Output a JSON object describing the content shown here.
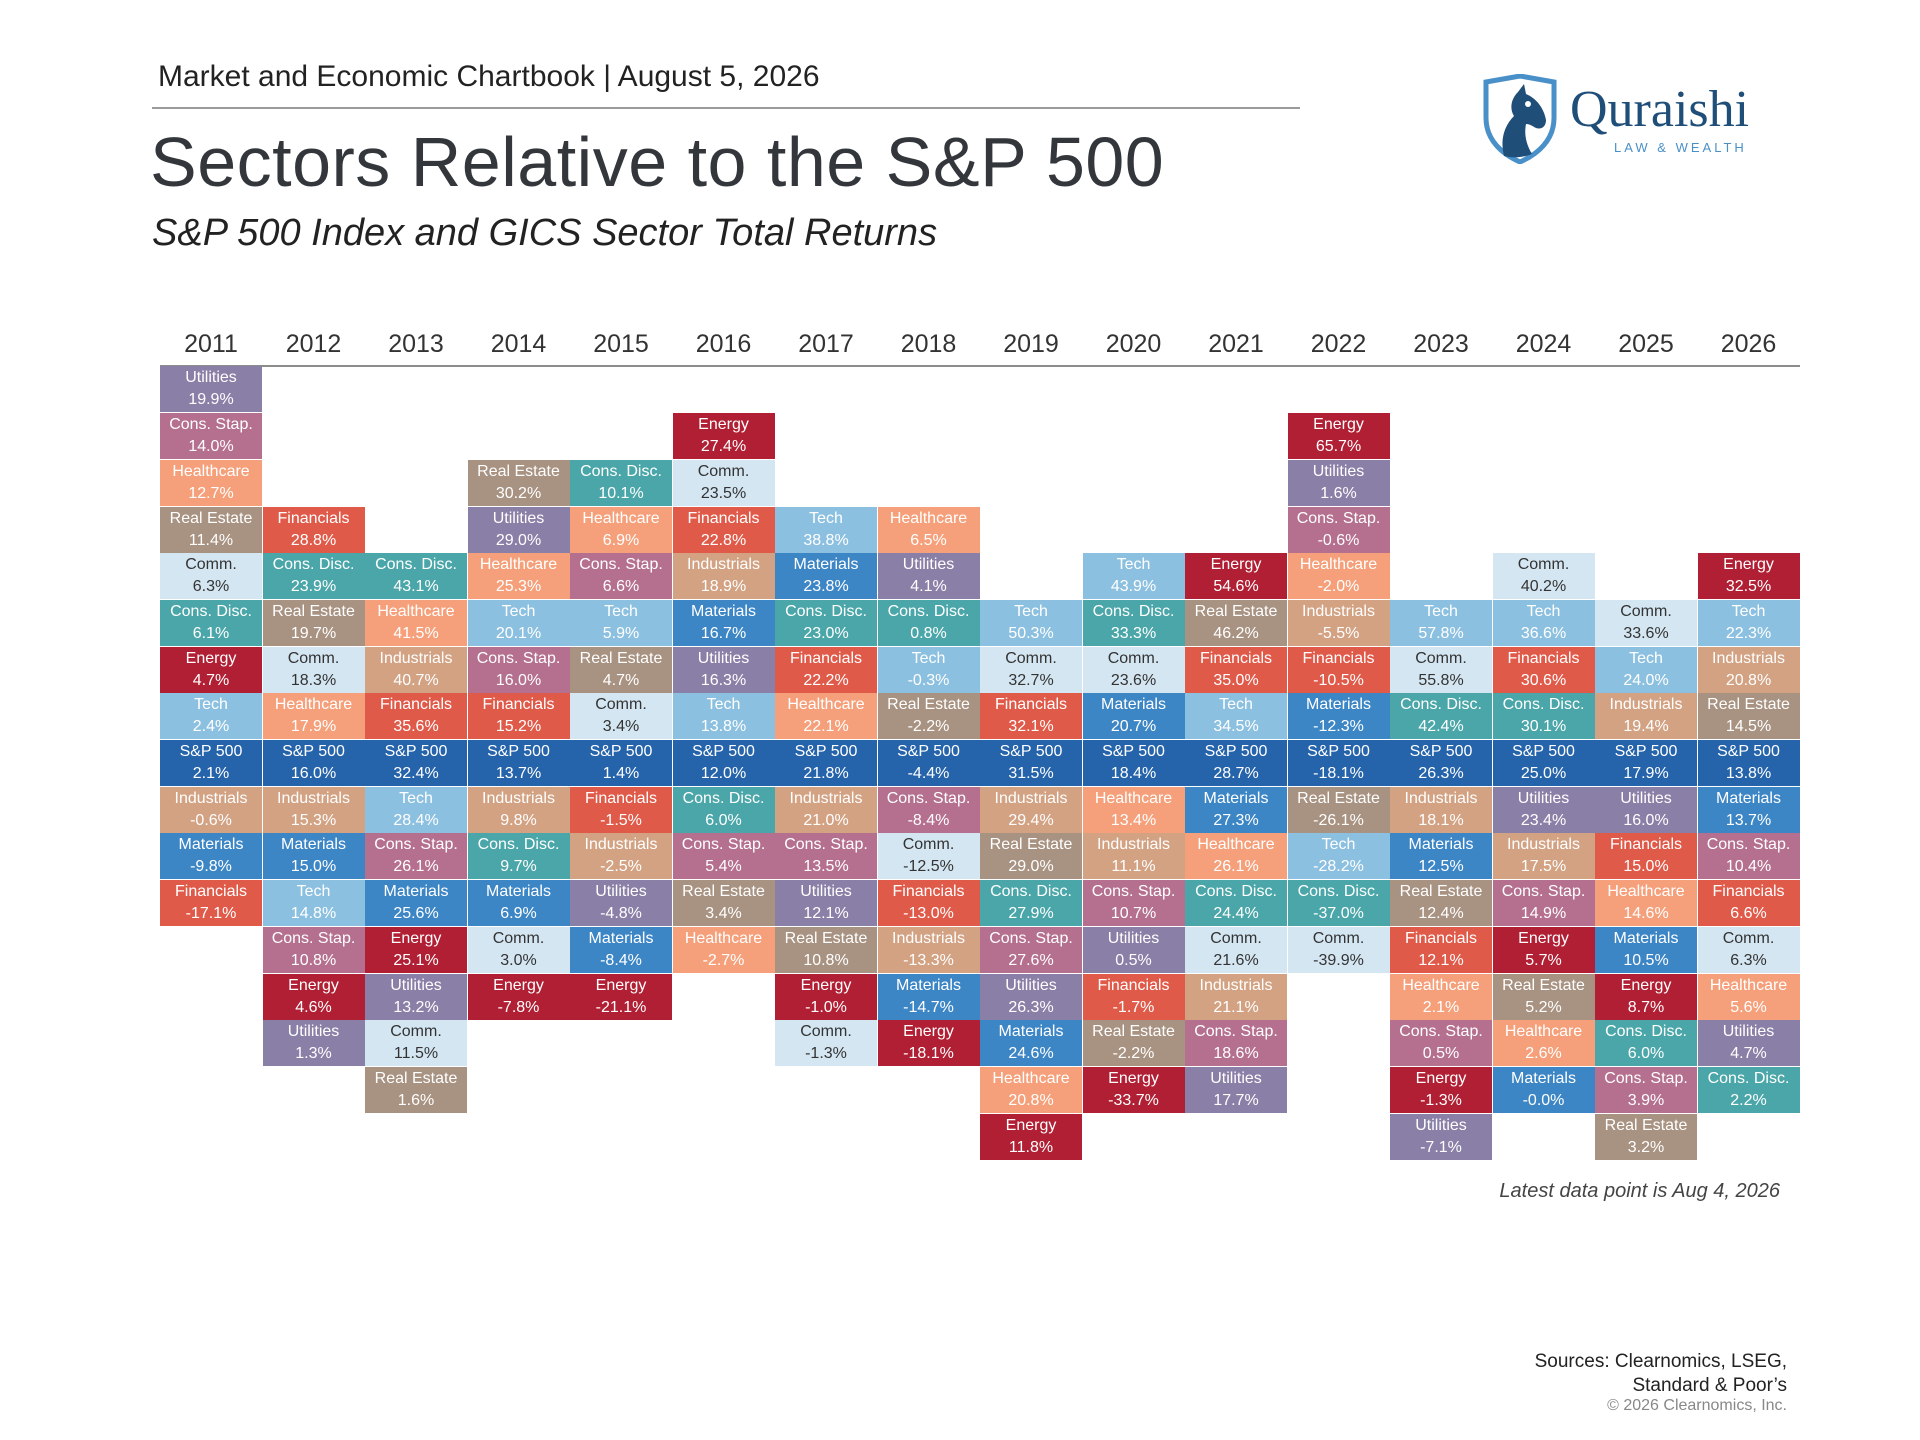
{
  "header": {
    "chartbook": "Market and Economic Chartbook | August 5, 2026",
    "title": "Sectors Relative to the S&P 500",
    "subtitle": "S&P 500 Index and GICS Sector Total Returns"
  },
  "logo": {
    "name": "Quraishi",
    "tagline": "LAW & WEALTH",
    "icon": "horse-head-shield-icon"
  },
  "footer": {
    "note": "Latest data point is Aug 4, 2026",
    "sources_line1": "Sources: Clearnomics, LSEG,",
    "sources_line2": "Standard & Poor’s",
    "copyright": "© 2026 Clearnomics, Inc."
  },
  "colors": {
    "Utilities": "#8a7fa6",
    "Cons. Stap.": "#b5708f",
    "Healthcare": "#f5a07a",
    "Real Estate": "#a89281",
    "Comm.": "#d4e6f2",
    "Cons. Disc.": "#4aa6a8",
    "Energy": "#b01f33",
    "Tech": "#8cc0e0",
    "S&P 500": "#2563aa",
    "Industrials": "#d2a283",
    "Materials": "#3d86c6",
    "Financials": "#e05a49"
  },
  "chart_data": {
    "type": "table",
    "sp500_row_index": 8,
    "years": [
      {
        "year": "2011",
        "start": 0,
        "cells": [
          [
            "Utilities",
            "19.9%"
          ],
          [
            "Cons. Stap.",
            "14.0%"
          ],
          [
            "Healthcare",
            "12.7%"
          ],
          [
            "Real Estate",
            "11.4%"
          ],
          [
            "Comm.",
            "6.3%"
          ],
          [
            "Cons. Disc.",
            "6.1%"
          ],
          [
            "Energy",
            "4.7%"
          ],
          [
            "Tech",
            "2.4%"
          ],
          [
            "S&P 500",
            "2.1%"
          ],
          [
            "Industrials",
            "-0.6%"
          ],
          [
            "Materials",
            "-9.8%"
          ],
          [
            "Financials",
            "-17.1%"
          ]
        ]
      },
      {
        "year": "2012",
        "start": 3,
        "cells": [
          [
            "Financials",
            "28.8%"
          ],
          [
            "Cons. Disc.",
            "23.9%"
          ],
          [
            "Real Estate",
            "19.7%"
          ],
          [
            "Comm.",
            "18.3%"
          ],
          [
            "Healthcare",
            "17.9%"
          ],
          [
            "S&P 500",
            "16.0%"
          ],
          [
            "Industrials",
            "15.3%"
          ],
          [
            "Materials",
            "15.0%"
          ],
          [
            "Tech",
            "14.8%"
          ],
          [
            "Cons. Stap.",
            "10.8%"
          ],
          [
            "Energy",
            "4.6%"
          ],
          [
            "Utilities",
            "1.3%"
          ]
        ]
      },
      {
        "year": "2013",
        "start": 4,
        "cells": [
          [
            "Cons. Disc.",
            "43.1%"
          ],
          [
            "Healthcare",
            "41.5%"
          ],
          [
            "Industrials",
            "40.7%"
          ],
          [
            "Financials",
            "35.6%"
          ],
          [
            "S&P 500",
            "32.4%"
          ],
          [
            "Tech",
            "28.4%"
          ],
          [
            "Cons. Stap.",
            "26.1%"
          ],
          [
            "Materials",
            "25.6%"
          ],
          [
            "Energy",
            "25.1%"
          ],
          [
            "Utilities",
            "13.2%"
          ],
          [
            "Comm.",
            "11.5%"
          ],
          [
            "Real Estate",
            "1.6%"
          ]
        ]
      },
      {
        "year": "2014",
        "start": 2,
        "cells": [
          [
            "Real Estate",
            "30.2%"
          ],
          [
            "Utilities",
            "29.0%"
          ],
          [
            "Healthcare",
            "25.3%"
          ],
          [
            "Tech",
            "20.1%"
          ],
          [
            "Cons. Stap.",
            "16.0%"
          ],
          [
            "Financials",
            "15.2%"
          ],
          [
            "S&P 500",
            "13.7%"
          ],
          [
            "Industrials",
            "9.8%"
          ],
          [
            "Cons. Disc.",
            "9.7%"
          ],
          [
            "Materials",
            "6.9%"
          ],
          [
            "Comm.",
            "3.0%"
          ],
          [
            "Energy",
            "-7.8%"
          ]
        ]
      },
      {
        "year": "2015",
        "start": 2,
        "cells": [
          [
            "Cons. Disc.",
            "10.1%"
          ],
          [
            "Healthcare",
            "6.9%"
          ],
          [
            "Cons. Stap.",
            "6.6%"
          ],
          [
            "Tech",
            "5.9%"
          ],
          [
            "Real Estate",
            "4.7%"
          ],
          [
            "Comm.",
            "3.4%"
          ],
          [
            "S&P 500",
            "1.4%"
          ],
          [
            "Financials",
            "-1.5%"
          ],
          [
            "Industrials",
            "-2.5%"
          ],
          [
            "Utilities",
            "-4.8%"
          ],
          [
            "Materials",
            "-8.4%"
          ],
          [
            "Energy",
            "-21.1%"
          ]
        ]
      },
      {
        "year": "2016",
        "start": 1,
        "cells": [
          [
            "Energy",
            "27.4%"
          ],
          [
            "Comm.",
            "23.5%"
          ],
          [
            "Financials",
            "22.8%"
          ],
          [
            "Industrials",
            "18.9%"
          ],
          [
            "Materials",
            "16.7%"
          ],
          [
            "Utilities",
            "16.3%"
          ],
          [
            "Tech",
            "13.8%"
          ],
          [
            "S&P 500",
            "12.0%"
          ],
          [
            "Cons. Disc.",
            "6.0%"
          ],
          [
            "Cons. Stap.",
            "5.4%"
          ],
          [
            "Real Estate",
            "3.4%"
          ],
          [
            "Healthcare",
            "-2.7%"
          ]
        ]
      },
      {
        "year": "2017",
        "start": 3,
        "cells": [
          [
            "Tech",
            "38.8%"
          ],
          [
            "Materials",
            "23.8%"
          ],
          [
            "Cons. Disc.",
            "23.0%"
          ],
          [
            "Financials",
            "22.2%"
          ],
          [
            "Healthcare",
            "22.1%"
          ],
          [
            "S&P 500",
            "21.8%"
          ],
          [
            "Industrials",
            "21.0%"
          ],
          [
            "Cons. Stap.",
            "13.5%"
          ],
          [
            "Utilities",
            "12.1%"
          ],
          [
            "Real Estate",
            "10.8%"
          ],
          [
            "Energy",
            "-1.0%"
          ],
          [
            "Comm.",
            "-1.3%"
          ]
        ]
      },
      {
        "year": "2018",
        "start": 3,
        "cells": [
          [
            "Healthcare",
            "6.5%"
          ],
          [
            "Utilities",
            "4.1%"
          ],
          [
            "Cons. Disc.",
            "0.8%"
          ],
          [
            "Tech",
            "-0.3%"
          ],
          [
            "Real Estate",
            "-2.2%"
          ],
          [
            "S&P 500",
            "-4.4%"
          ],
          [
            "Cons. Stap.",
            "-8.4%"
          ],
          [
            "Comm.",
            "-12.5%"
          ],
          [
            "Financials",
            "-13.0%"
          ],
          [
            "Industrials",
            "-13.3%"
          ],
          [
            "Materials",
            "-14.7%"
          ],
          [
            "Energy",
            "-18.1%"
          ]
        ]
      },
      {
        "year": "2019",
        "start": 5,
        "cells": [
          [
            "Tech",
            "50.3%"
          ],
          [
            "Comm.",
            "32.7%"
          ],
          [
            "Financials",
            "32.1%"
          ],
          [
            "S&P 500",
            "31.5%"
          ],
          [
            "Industrials",
            "29.4%"
          ],
          [
            "Real Estate",
            "29.0%"
          ],
          [
            "Cons. Disc.",
            "27.9%"
          ],
          [
            "Cons. Stap.",
            "27.6%"
          ],
          [
            "Utilities",
            "26.3%"
          ],
          [
            "Materials",
            "24.6%"
          ],
          [
            "Healthcare",
            "20.8%"
          ],
          [
            "Energy",
            "11.8%"
          ]
        ]
      },
      {
        "year": "2020",
        "start": 4,
        "cells": [
          [
            "Tech",
            "43.9%"
          ],
          [
            "Cons. Disc.",
            "33.3%"
          ],
          [
            "Comm.",
            "23.6%"
          ],
          [
            "Materials",
            "20.7%"
          ],
          [
            "S&P 500",
            "18.4%"
          ],
          [
            "Healthcare",
            "13.4%"
          ],
          [
            "Industrials",
            "11.1%"
          ],
          [
            "Cons. Stap.",
            "10.7%"
          ],
          [
            "Utilities",
            "0.5%"
          ],
          [
            "Financials",
            "-1.7%"
          ],
          [
            "Real Estate",
            "-2.2%"
          ],
          [
            "Energy",
            "-33.7%"
          ]
        ]
      },
      {
        "year": "2021",
        "start": 4,
        "cells": [
          [
            "Energy",
            "54.6%"
          ],
          [
            "Real Estate",
            "46.2%"
          ],
          [
            "Financials",
            "35.0%"
          ],
          [
            "Tech",
            "34.5%"
          ],
          [
            "S&P 500",
            "28.7%"
          ],
          [
            "Materials",
            "27.3%"
          ],
          [
            "Healthcare",
            "26.1%"
          ],
          [
            "Cons. Disc.",
            "24.4%"
          ],
          [
            "Comm.",
            "21.6%"
          ],
          [
            "Industrials",
            "21.1%"
          ],
          [
            "Cons. Stap.",
            "18.6%"
          ],
          [
            "Utilities",
            "17.7%"
          ]
        ]
      },
      {
        "year": "2022",
        "start": 1,
        "cells": [
          [
            "Energy",
            "65.7%"
          ],
          [
            "Utilities",
            "1.6%"
          ],
          [
            "Cons. Stap.",
            "-0.6%"
          ],
          [
            "Healthcare",
            "-2.0%"
          ],
          [
            "Industrials",
            "-5.5%"
          ],
          [
            "Financials",
            "-10.5%"
          ],
          [
            "Materials",
            "-12.3%"
          ],
          [
            "S&P 500",
            "-18.1%"
          ],
          [
            "Real Estate",
            "-26.1%"
          ],
          [
            "Tech",
            "-28.2%"
          ],
          [
            "Cons. Disc.",
            "-37.0%"
          ],
          [
            "Comm.",
            "-39.9%"
          ]
        ]
      },
      {
        "year": "2023",
        "start": 5,
        "cells": [
          [
            "Tech",
            "57.8%"
          ],
          [
            "Comm.",
            "55.8%"
          ],
          [
            "Cons. Disc.",
            "42.4%"
          ],
          [
            "S&P 500",
            "26.3%"
          ],
          [
            "Industrials",
            "18.1%"
          ],
          [
            "Materials",
            "12.5%"
          ],
          [
            "Real Estate",
            "12.4%"
          ],
          [
            "Financials",
            "12.1%"
          ],
          [
            "Healthcare",
            "2.1%"
          ],
          [
            "Cons. Stap.",
            "0.5%"
          ],
          [
            "Energy",
            "-1.3%"
          ],
          [
            "Utilities",
            "-7.1%"
          ]
        ]
      },
      {
        "year": "2024",
        "start": 4,
        "cells": [
          [
            "Comm.",
            "40.2%"
          ],
          [
            "Tech",
            "36.6%"
          ],
          [
            "Financials",
            "30.6%"
          ],
          [
            "Cons. Disc.",
            "30.1%"
          ],
          [
            "S&P 500",
            "25.0%"
          ],
          [
            "Utilities",
            "23.4%"
          ],
          [
            "Industrials",
            "17.5%"
          ],
          [
            "Cons. Stap.",
            "14.9%"
          ],
          [
            "Energy",
            "5.7%"
          ],
          [
            "Real Estate",
            "5.2%"
          ],
          [
            "Healthcare",
            "2.6%"
          ],
          [
            "Materials",
            "-0.0%"
          ]
        ]
      },
      {
        "year": "2025",
        "start": 5,
        "cells": [
          [
            "Comm.",
            "33.6%"
          ],
          [
            "Tech",
            "24.0%"
          ],
          [
            "Industrials",
            "19.4%"
          ],
          [
            "S&P 500",
            "17.9%"
          ],
          [
            "Utilities",
            "16.0%"
          ],
          [
            "Financials",
            "15.0%"
          ],
          [
            "Healthcare",
            "14.6%"
          ],
          [
            "Materials",
            "10.5%"
          ],
          [
            "Energy",
            "8.7%"
          ],
          [
            "Cons. Disc.",
            "6.0%"
          ],
          [
            "Cons. Stap.",
            "3.9%"
          ],
          [
            "Real Estate",
            "3.2%"
          ]
        ]
      },
      {
        "year": "2026",
        "start": 4,
        "cells": [
          [
            "Energy",
            "32.5%"
          ],
          [
            "Tech",
            "22.3%"
          ],
          [
            "Industrials",
            "20.8%"
          ],
          [
            "Real Estate",
            "14.5%"
          ],
          [
            "S&P 500",
            "13.8%"
          ],
          [
            "Materials",
            "13.7%"
          ],
          [
            "Cons. Stap.",
            "10.4%"
          ],
          [
            "Financials",
            "6.6%"
          ],
          [
            "Comm.",
            "6.3%"
          ],
          [
            "Healthcare",
            "5.6%"
          ],
          [
            "Utilities",
            "4.7%"
          ],
          [
            "Cons. Disc.",
            "2.2%"
          ]
        ]
      }
    ]
  }
}
